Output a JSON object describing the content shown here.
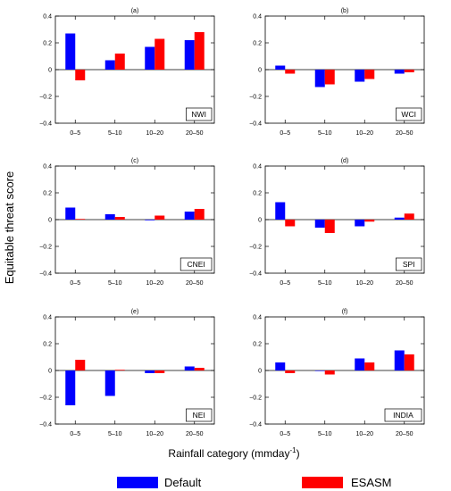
{
  "figure": {
    "ylabel": "Equitable threat score",
    "xlabel_main": "Rainfall category (mmday",
    "xlabel_sup": "-1",
    "xlabel_close": ")"
  },
  "legend": {
    "items": [
      {
        "name": "Default",
        "color": "#0000ff"
      },
      {
        "name": "ESASM",
        "color": "#ff0000"
      }
    ]
  },
  "chart_data": [
    {
      "type": "bar",
      "title": "(a)",
      "region": "NWI",
      "categories": [
        "0–5",
        "5–10",
        "10–20",
        "20–50"
      ],
      "series": [
        {
          "name": "Default",
          "values": [
            0.27,
            0.07,
            0.17,
            0.22
          ]
        },
        {
          "name": "ESASM",
          "values": [
            -0.08,
            0.12,
            0.23,
            0.28
          ]
        }
      ],
      "ylim": [
        -0.4,
        0.4
      ],
      "yticks": [
        "0.4",
        "0.2",
        "0",
        "−0.2",
        "−0.4"
      ],
      "grid": false
    },
    {
      "type": "bar",
      "title": "(b)",
      "region": "WCI",
      "categories": [
        "0–5",
        "5–10",
        "10–20",
        "20–50"
      ],
      "series": [
        {
          "name": "Default",
          "values": [
            0.03,
            -0.13,
            -0.09,
            -0.03
          ]
        },
        {
          "name": "ESASM",
          "values": [
            -0.03,
            -0.11,
            -0.07,
            -0.02
          ]
        }
      ],
      "ylim": [
        -0.4,
        0.4
      ],
      "yticks": [
        "0.4",
        "0.2",
        "0",
        "−0.2",
        "−0.4"
      ],
      "grid": false
    },
    {
      "type": "bar",
      "title": "(c)",
      "region": "CNEI",
      "categories": [
        "0–5",
        "5–10",
        "10–20",
        "20–50"
      ],
      "series": [
        {
          "name": "Default",
          "values": [
            0.09,
            0.04,
            -0.005,
            0.06
          ]
        },
        {
          "name": "ESASM",
          "values": [
            0.005,
            0.02,
            0.03,
            0.08
          ]
        }
      ],
      "ylim": [
        -0.4,
        0.4
      ],
      "yticks": [
        "0.4",
        "0.2",
        "0",
        "−0.2",
        "−0.4"
      ],
      "grid": false
    },
    {
      "type": "bar",
      "title": "(d)",
      "region": "SPI",
      "categories": [
        "0–5",
        "5–10",
        "10–20",
        "20–50"
      ],
      "series": [
        {
          "name": "Default",
          "values": [
            0.13,
            -0.06,
            -0.05,
            0.015
          ]
        },
        {
          "name": "ESASM",
          "values": [
            -0.05,
            -0.1,
            -0.015,
            0.045
          ]
        }
      ],
      "ylim": [
        -0.4,
        0.4
      ],
      "yticks": [
        "0.4",
        "0.2",
        "0",
        "−0.2",
        "−0.4"
      ],
      "grid": false
    },
    {
      "type": "bar",
      "title": "(e)",
      "region": "NEI",
      "categories": [
        "0–5",
        "5–10",
        "10–20",
        "20–50"
      ],
      "series": [
        {
          "name": "Default",
          "values": [
            -0.26,
            -0.19,
            -0.02,
            0.03
          ]
        },
        {
          "name": "ESASM",
          "values": [
            0.08,
            0.005,
            -0.02,
            0.02
          ]
        }
      ],
      "ylim": [
        -0.4,
        0.4
      ],
      "yticks": [
        "0.4",
        "0.2",
        "0",
        "−0.2",
        "−0.4"
      ],
      "grid": false
    },
    {
      "type": "bar",
      "title": "(f)",
      "region": "INDIA",
      "categories": [
        "0–5",
        "5–10",
        "10–20",
        "20–50"
      ],
      "series": [
        {
          "name": "Default",
          "values": [
            0.06,
            0.0,
            0.09,
            0.15
          ]
        },
        {
          "name": "ESASM",
          "values": [
            -0.02,
            -0.03,
            0.06,
            0.12
          ]
        }
      ],
      "ylim": [
        -0.4,
        0.4
      ],
      "yticks": [
        "0.4",
        "0.2",
        "0",
        "−0.2",
        "−0.4"
      ],
      "grid": false
    }
  ]
}
